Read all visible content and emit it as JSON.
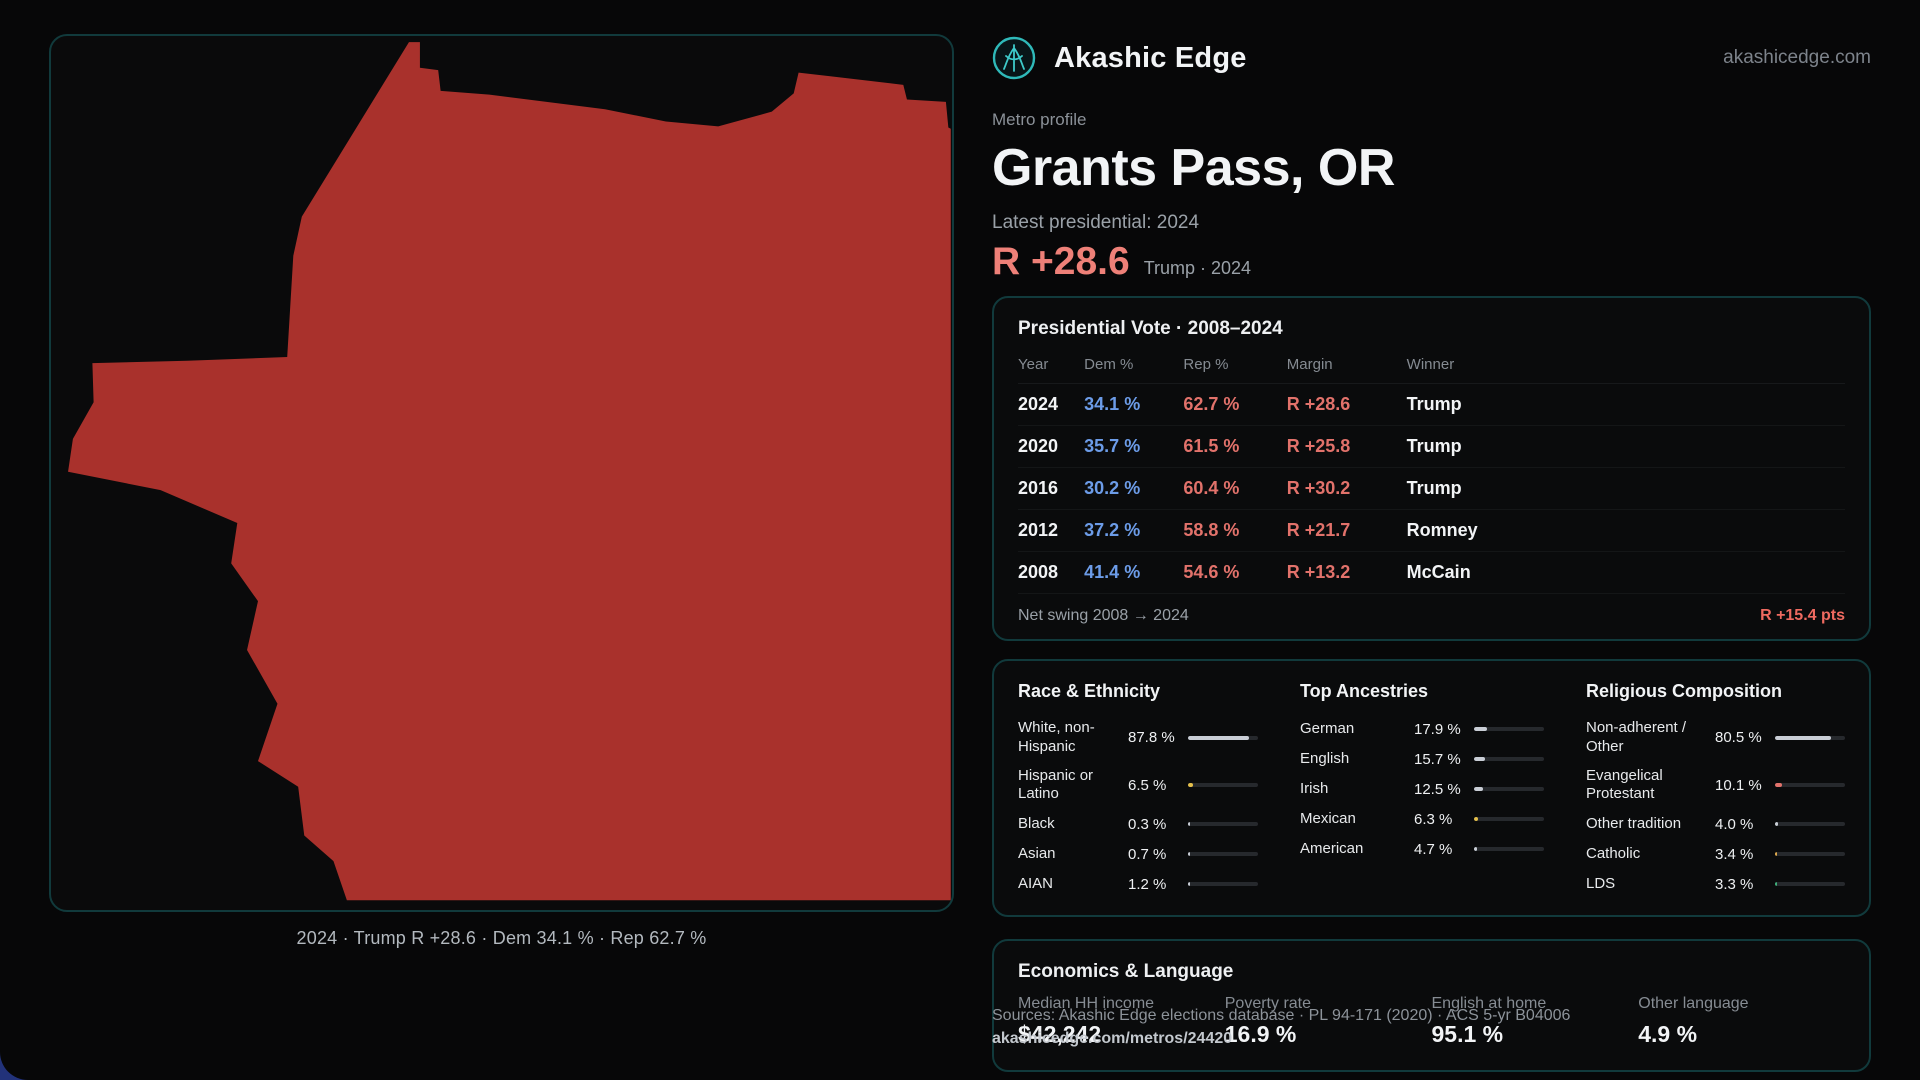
{
  "header": {
    "site_name": "Akashic Edge",
    "site_domain": "akashicedge.com"
  },
  "profile": {
    "kicker": "Metro profile",
    "metro_name": "Grants Pass, OR",
    "latest_label": "Latest presidential: 2024",
    "headline_margin": "R +28.6",
    "headline_note": "Trump · 2024"
  },
  "map": {
    "caption": "2024 · Trump R +28.6 · Dem 34.1 % · Rep 62.7 %",
    "fill": "#a9312c"
  },
  "footer": {
    "sources": "Sources: Akashic Edge elections database · PL 94-171 (2020) · ACS 5-yr B04006",
    "permalink": "akashicedge.com/metros/24420"
  },
  "colors": {
    "dem_blue": "#6c9ce8",
    "rep_red": "#e2726b",
    "accent_red": "#ee8078",
    "swing_red": "#ef6a60",
    "map_red": "#a9312c",
    "panel_border": "#113a3c",
    "bar_neutral": "#c9ced6",
    "bar_yellow": "#e5c04b",
    "bar_green": "#3fae7a",
    "bar_orange": "#e0a94d"
  },
  "chart_data": [
    {
      "type": "table",
      "title": "Presidential Vote · 2008–2024",
      "columns": [
        "Year",
        "Dem %",
        "Rep %",
        "Margin",
        "Winner"
      ],
      "rows": [
        [
          2024,
          34.1,
          62.7,
          "R +28.6",
          "Trump"
        ],
        [
          2020,
          35.7,
          61.5,
          "R +25.8",
          "Trump"
        ],
        [
          2016,
          30.2,
          60.4,
          "R +30.2",
          "Trump"
        ],
        [
          2012,
          37.2,
          58.8,
          "R +21.7",
          "Romney"
        ],
        [
          2008,
          41.4,
          54.6,
          "R +13.2",
          "McCain"
        ]
      ],
      "net_swing_label": "Net swing 2008 → 2024",
      "net_swing_value": "R +15.4 pts"
    },
    {
      "type": "bar",
      "title": "Race & Ethnicity",
      "categories": [
        "White, non-Hispanic",
        "Hispanic or Latino",
        "Black",
        "Asian",
        "AIAN"
      ],
      "values": [
        87.8,
        6.5,
        0.3,
        0.7,
        1.2
      ],
      "unit": "%",
      "xlim": [
        0,
        100
      ],
      "bar_colors": [
        "#c9ced6",
        "#e5c04b",
        "#c9ced6",
        "#c9ced6",
        "#c9ced6"
      ]
    },
    {
      "type": "bar",
      "title": "Top Ancestries",
      "categories": [
        "German",
        "English",
        "Irish",
        "Mexican",
        "American"
      ],
      "values": [
        17.9,
        15.7,
        12.5,
        6.3,
        4.7
      ],
      "unit": "%",
      "xlim": [
        0,
        100
      ],
      "bar_colors": [
        "#c9ced6",
        "#c9ced6",
        "#c9ced6",
        "#e5c04b",
        "#c9ced6"
      ]
    },
    {
      "type": "bar",
      "title": "Religious Composition",
      "categories": [
        "Non-adherent / Other",
        "Evangelical Protestant",
        "Other tradition",
        "Catholic",
        "LDS"
      ],
      "values": [
        80.5,
        10.1,
        4.0,
        3.4,
        3.3
      ],
      "unit": "%",
      "xlim": [
        0,
        100
      ],
      "bar_colors": [
        "#c9ced6",
        "#e2726b",
        "#c9ced6",
        "#e0a94d",
        "#3fae7a"
      ]
    },
    {
      "type": "table",
      "title": "Economics & Language",
      "columns": [
        "Median HH income",
        "Poverty rate",
        "English at home",
        "Other language"
      ],
      "rows": [
        [
          "$42,242",
          "16.9 %",
          "95.1 %",
          "4.9 %"
        ]
      ]
    }
  ]
}
